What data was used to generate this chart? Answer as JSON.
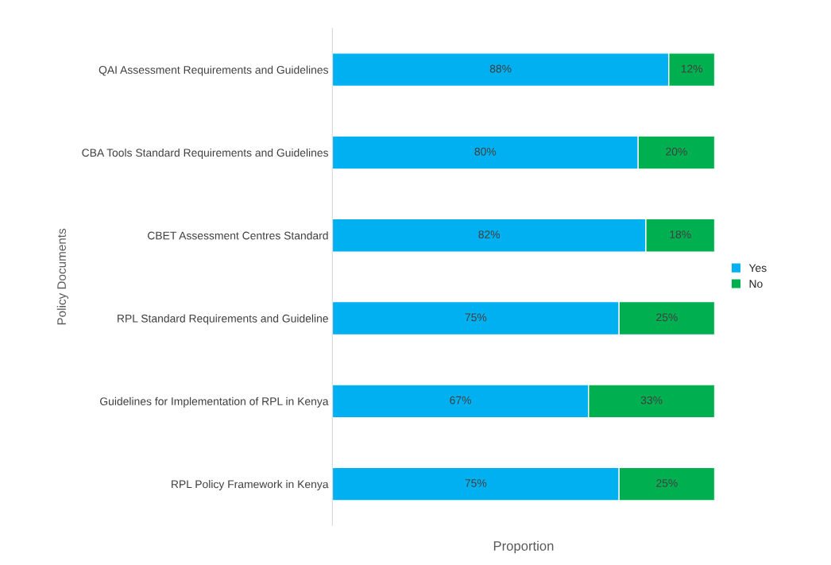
{
  "chart_data": {
    "type": "bar",
    "orientation": "horizontal",
    "stacked": true,
    "xlabel": "Proportion",
    "ylabel": "Policy Documents",
    "categories": [
      "QAI Assessment Requirements and Guidelines",
      "CBA Tools Standard Requirements and Guidelines",
      "CBET Assessment Centres Standard",
      "RPL Standard Requirements and Guideline",
      "Guidelines for Implementation of RPL in Kenya",
      "RPL Policy Framework in Kenya"
    ],
    "series": [
      {
        "name": "Yes",
        "color": "#00b0f0",
        "values": [
          88,
          80,
          82,
          75,
          67,
          75
        ],
        "value_labels": [
          "88%",
          "80%",
          "82%",
          "75%",
          "67%",
          "75%"
        ]
      },
      {
        "name": "No",
        "color": "#00b050",
        "values": [
          12,
          20,
          18,
          25,
          33,
          25
        ],
        "value_labels": [
          "12%",
          "20%",
          "18%",
          "25%",
          "33%",
          "25%"
        ]
      }
    ],
    "xlim": [
      0,
      100
    ],
    "tick_labels": "y",
    "grid": false,
    "legend": "right"
  }
}
